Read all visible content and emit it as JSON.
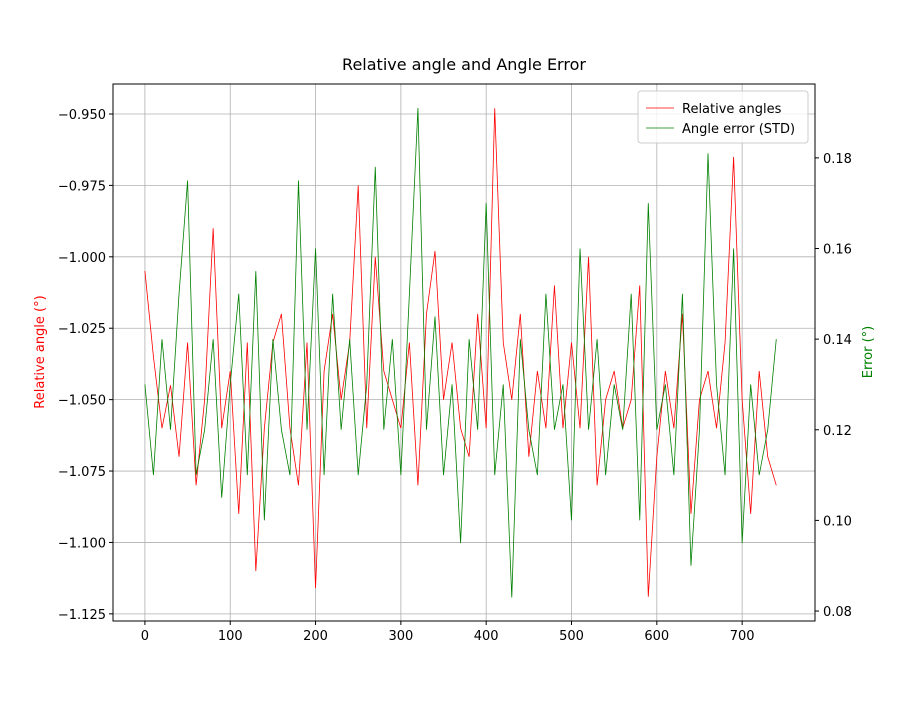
{
  "chart_data": {
    "type": "line",
    "title": "Relative angle and Angle Error",
    "ylabel": "Relative angle (°)",
    "y2label": "Error (°)",
    "ylabel_color": "red",
    "y2label_color": "green",
    "x": [
      0,
      10,
      20,
      30,
      40,
      50,
      60,
      70,
      80,
      90,
      100,
      110,
      120,
      130,
      140,
      150,
      160,
      170,
      180,
      190,
      200,
      210,
      220,
      230,
      240,
      250,
      260,
      270,
      280,
      290,
      300,
      310,
      320,
      330,
      340,
      350,
      360,
      370,
      380,
      390,
      400,
      410,
      420,
      430,
      440,
      450,
      460,
      470,
      480,
      490,
      500,
      510,
      520,
      530,
      540,
      550,
      560,
      570,
      580,
      590,
      600,
      610,
      620,
      630,
      640,
      650,
      660,
      670,
      680,
      690,
      700,
      710,
      720,
      730,
      740
    ],
    "series": [
      {
        "name": "Relative angles",
        "color": "red",
        "axis": "y",
        "values": [
          -1.005,
          -1.035,
          -1.06,
          -1.045,
          -1.07,
          -1.03,
          -1.08,
          -1.05,
          -0.99,
          -1.06,
          -1.04,
          -1.09,
          -1.03,
          -1.11,
          -1.06,
          -1.03,
          -1.02,
          -1.06,
          -1.08,
          -1.03,
          -1.116,
          -1.04,
          -1.02,
          -1.05,
          -1.03,
          -0.975,
          -1.06,
          -1.0,
          -1.04,
          -1.05,
          -1.06,
          -1.03,
          -1.08,
          -1.02,
          -0.998,
          -1.05,
          -1.03,
          -1.06,
          -1.07,
          -1.02,
          -1.06,
          -0.948,
          -1.03,
          -1.05,
          -1.02,
          -1.07,
          -1.04,
          -1.06,
          -1.01,
          -1.06,
          -1.03,
          -1.06,
          -1.0,
          -1.08,
          -1.05,
          -1.04,
          -1.06,
          -1.05,
          -1.01,
          -1.119,
          -1.07,
          -1.04,
          -1.06,
          -1.02,
          -1.09,
          -1.05,
          -1.04,
          -1.06,
          -1.03,
          -0.965,
          -1.05,
          -1.09,
          -1.04,
          -1.07,
          -1.08
        ]
      },
      {
        "name": "Angle error (STD)",
        "color": "green",
        "axis": "y2",
        "values": [
          0.13,
          0.11,
          0.14,
          0.12,
          0.15,
          0.175,
          0.11,
          0.12,
          0.14,
          0.105,
          0.13,
          0.15,
          0.11,
          0.155,
          0.1,
          0.14,
          0.12,
          0.11,
          0.175,
          0.12,
          0.16,
          0.11,
          0.15,
          0.12,
          0.14,
          0.11,
          0.13,
          0.178,
          0.12,
          0.14,
          0.11,
          0.15,
          0.191,
          0.12,
          0.145,
          0.11,
          0.13,
          0.095,
          0.14,
          0.12,
          0.17,
          0.11,
          0.13,
          0.083,
          0.14,
          0.12,
          0.11,
          0.15,
          0.12,
          0.13,
          0.1,
          0.16,
          0.12,
          0.14,
          0.11,
          0.13,
          0.12,
          0.15,
          0.1,
          0.17,
          0.12,
          0.13,
          0.11,
          0.15,
          0.09,
          0.12,
          0.181,
          0.13,
          0.11,
          0.16,
          0.095,
          0.13,
          0.11,
          0.12,
          0.14
        ]
      }
    ],
    "xlim": [
      -37.4,
      785.4
    ],
    "xticks": [
      0,
      100,
      200,
      300,
      400,
      500,
      600,
      700
    ],
    "ylim": [
      -1.1275,
      -0.9395
    ],
    "yticks": [
      {
        "value": -0.95,
        "label": "−0.950"
      },
      {
        "value": -0.975,
        "label": "−0.975"
      },
      {
        "value": -1.0,
        "label": "−1.000"
      },
      {
        "value": -1.025,
        "label": "−1.025"
      },
      {
        "value": -1.05,
        "label": "−1.050"
      },
      {
        "value": -1.075,
        "label": "−1.075"
      },
      {
        "value": -1.1,
        "label": "−1.100"
      },
      {
        "value": -1.125,
        "label": "−1.125"
      }
    ],
    "y2lim": [
      0.0778,
      0.1963
    ],
    "y2ticks": [
      0.08,
      {
        "value": 0.1,
        "label": "0.10"
      },
      0.12,
      0.14,
      0.16,
      0.18
    ],
    "grid": true,
    "legend": "upper right"
  }
}
